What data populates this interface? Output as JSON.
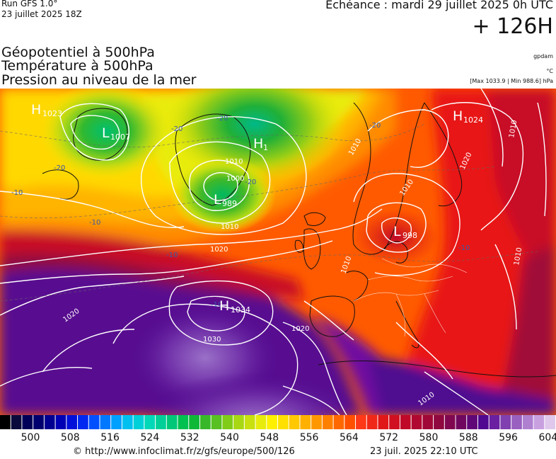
{
  "header": {
    "run_label": "Run GFS 1.0°",
    "run_date": "23 juillet 2025 18Z",
    "echeance": "Echéance : mardi 29 juillet 2025 0h UTC",
    "lead_time": "+ 126H"
  },
  "parameters": {
    "line1": "Géopotentiel à 500hPa",
    "line2": "Température à 500hPa",
    "line3": "Pression au niveau de la mer"
  },
  "units": {
    "geopotential": "gpdam",
    "temperature": "°C",
    "pressure_range": "[Max 1033.9 | Min 988.6] hPa"
  },
  "pressure_centers": [
    {
      "type": "H",
      "value": "1023"
    },
    {
      "type": "L",
      "value": "1007"
    },
    {
      "type": "H",
      "value": "1"
    },
    {
      "type": "L",
      "value": "989"
    },
    {
      "type": "H",
      "value": "1024"
    },
    {
      "type": "L",
      "value": "998"
    },
    {
      "type": "H",
      "value": "1034"
    }
  ],
  "isobar_labels": [
    "1010",
    "1010",
    "1000",
    "1010",
    "1020",
    "1010",
    "1020",
    "1010",
    "1020",
    "1020",
    "1030",
    "1010",
    "1010",
    "1010"
  ],
  "temperature_labels": [
    "-20",
    "-20",
    "-20",
    "-20",
    "-20",
    "-10",
    "-10",
    "-10",
    "-10",
    "-10"
  ],
  "colorbar": {
    "colors": [
      "#000000",
      "#0a0a3c",
      "#000058",
      "#00006e",
      "#000090",
      "#0000b4",
      "#0010d8",
      "#0028f0",
      "#0050ff",
      "#0078ff",
      "#00a0ff",
      "#00c0f0",
      "#00d0d8",
      "#00d8b8",
      "#00d098",
      "#00c878",
      "#00c050",
      "#10b838",
      "#38b828",
      "#58c020",
      "#80cc18",
      "#a8d814",
      "#c8e010",
      "#e8ec0c",
      "#fff000",
      "#ffe000",
      "#ffc800",
      "#ffb000",
      "#ff9800",
      "#ff8000",
      "#ff6800",
      "#ff5000",
      "#ff3818",
      "#f02818",
      "#e01818",
      "#d01020",
      "#c00828",
      "#b00830",
      "#a00838",
      "#900840",
      "#800850",
      "#700860",
      "#600878",
      "#500890",
      "#6a20a0",
      "#8040b0",
      "#9a60c0",
      "#b080d0",
      "#c8a0e0",
      "#e0c8ec"
    ],
    "ticks": [
      "500",
      "508",
      "516",
      "524",
      "532",
      "540",
      "548",
      "556",
      "564",
      "572",
      "580",
      "588",
      "596",
      "604"
    ]
  },
  "footer": {
    "credit": "© http://www.infoclimat.fr/z/gfs/europe/500/126",
    "generated": "23 juil. 2025 22:10 UTC"
  }
}
